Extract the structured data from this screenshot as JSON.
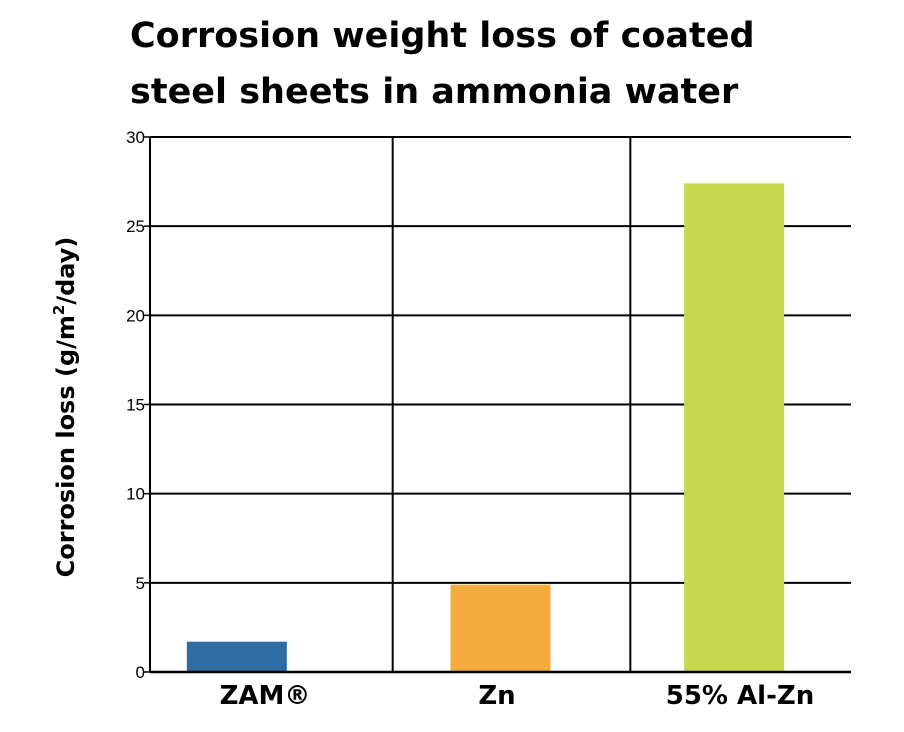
{
  "chart_data": {
    "type": "bar",
    "title_lines": [
      "Corrosion weight loss of coated",
      "steel sheets in ammonia water"
    ],
    "ylabel": {
      "main": "Corrosion loss (g/m",
      "superscript": "2",
      "tail": "/day)"
    },
    "xlabel": "",
    "categories": [
      "ZAM®",
      "Zn",
      "55% Al-Zn"
    ],
    "values": [
      1.7,
      4.9,
      27.4
    ],
    "colors": [
      "#2e6da4",
      "#f4ad3c",
      "#c6d94e"
    ],
    "ylim": [
      0,
      30
    ],
    "yticks": [
      0,
      5,
      10,
      15,
      20,
      25,
      30
    ],
    "grid": true,
    "legend": "none"
  }
}
